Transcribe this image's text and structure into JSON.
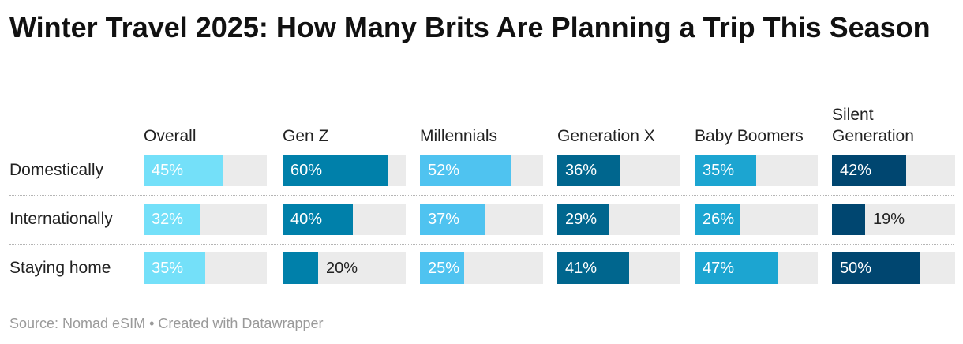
{
  "title": "Winter Travel 2025: How Many Brits Are Planning a Trip This Season",
  "footer": {
    "text": "Source: Nomad eSIM • Created with Datawrapper"
  },
  "chart_data": {
    "type": "bar",
    "title": "Winter Travel 2025: How Many Brits Are Planning a Trip This Season",
    "unit": "%",
    "xlim": [
      0,
      70
    ],
    "categories": [
      "Domestically",
      "Internationally",
      "Staying home"
    ],
    "series": [
      {
        "name": "Overall",
        "color": "#74e0f9",
        "values": [
          45,
          32,
          35
        ],
        "labels": [
          "45%",
          "32%",
          "35%"
        ]
      },
      {
        "name": "Gen Z",
        "color": "#0080aa",
        "values": [
          60,
          40,
          20
        ],
        "labels": [
          "60%",
          "40%",
          "20%"
        ]
      },
      {
        "name": "Millennials",
        "color": "#4fc3f0",
        "values": [
          52,
          37,
          25
        ],
        "labels": [
          "52%",
          "37%",
          "25%"
        ]
      },
      {
        "name": "Generation X",
        "color": "#00668e",
        "values": [
          36,
          29,
          41
        ],
        "labels": [
          "36%",
          "29%",
          "41%"
        ]
      },
      {
        "name": "Baby Boomers",
        "color": "#1ca5d1",
        "values": [
          35,
          26,
          47
        ],
        "labels": [
          "35%",
          "26%",
          "47%"
        ]
      },
      {
        "name": "Silent Generation",
        "color": "#004670",
        "values": [
          42,
          19,
          50
        ],
        "labels": [
          "42%",
          "19%",
          "50%"
        ]
      }
    ],
    "legend": "column headers",
    "grid": false
  }
}
